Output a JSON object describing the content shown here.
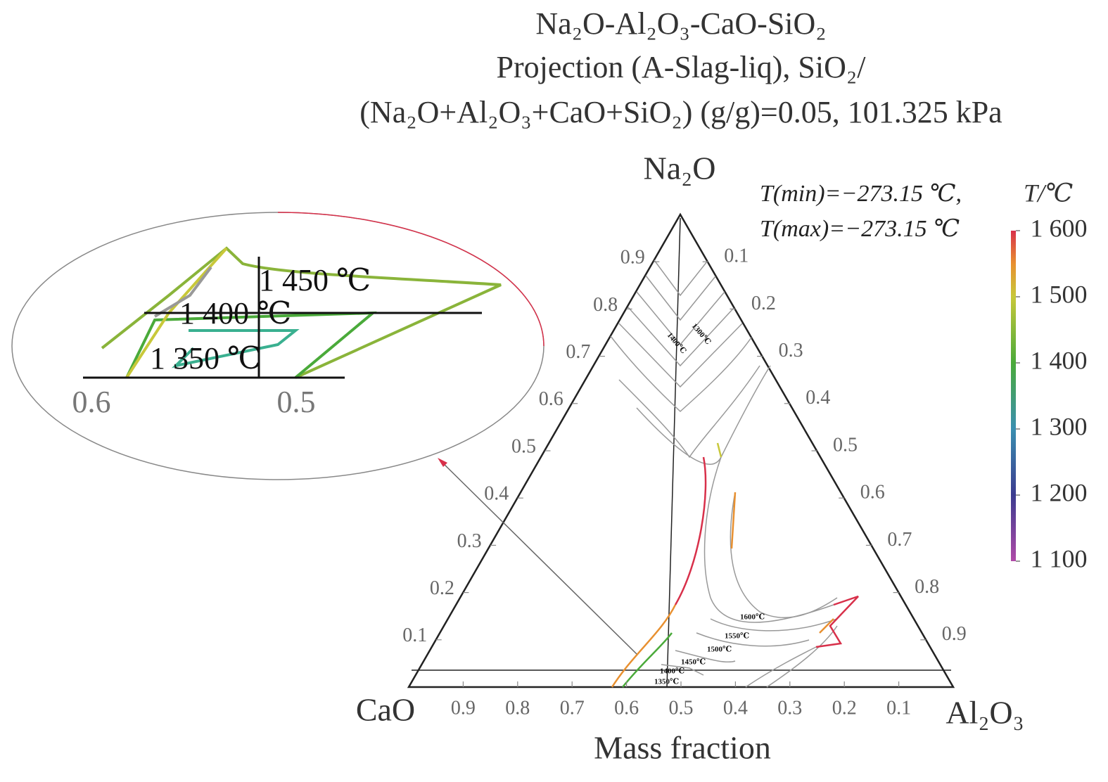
{
  "chart_data": {
    "type": "ternary",
    "title": [
      "Na₂O-Al₂O₃-CaO-SiO₂",
      "Projection (A-Slag-liq), SiO₂/",
      "(Na₂O+Al₂O₃+CaO+SiO₂) (g/g)=0.05, 101.325 kPa"
    ],
    "vertices": {
      "top": "Na₂O",
      "left": "CaO",
      "right": "Al₂O₃"
    },
    "xlabel": "Mass fraction",
    "bottom_ticks": [
      0.9,
      0.8,
      0.7,
      0.6,
      0.5,
      0.4,
      0.3,
      0.2,
      0.1
    ],
    "left_ticks": [
      0.9,
      0.8,
      0.7,
      0.6,
      0.5,
      0.4,
      0.3,
      0.2,
      0.1
    ],
    "right_ticks": [
      0.1,
      0.2,
      0.3,
      0.4,
      0.5,
      0.6,
      0.7,
      0.8,
      0.9
    ],
    "annotations": [
      "T(min)=−273.15 ℃,",
      "T(max)=−273.15 ℃"
    ],
    "colorbar": {
      "label": "T/℃",
      "lim": [
        1100,
        1600
      ],
      "ticks": [
        {
          "value": 1600,
          "label": "1 600"
        },
        {
          "value": 1500,
          "label": "1 500"
        },
        {
          "value": 1400,
          "label": "1 400"
        },
        {
          "value": 1300,
          "label": "1 300"
        },
        {
          "value": 1200,
          "label": "1 200"
        },
        {
          "value": 1100,
          "label": "1 100"
        }
      ]
    },
    "contour_labels": [
      "1600℃",
      "1550℃",
      "1500℃",
      "1450℃",
      "1400℃",
      "1350℃",
      "1300℃",
      "1400℃"
    ],
    "inset": {
      "labels": [
        "1 450 ℃",
        "1 400 ℃",
        "1 350 ℃"
      ],
      "ticks": [
        "0.6",
        "0.5"
      ]
    }
  }
}
